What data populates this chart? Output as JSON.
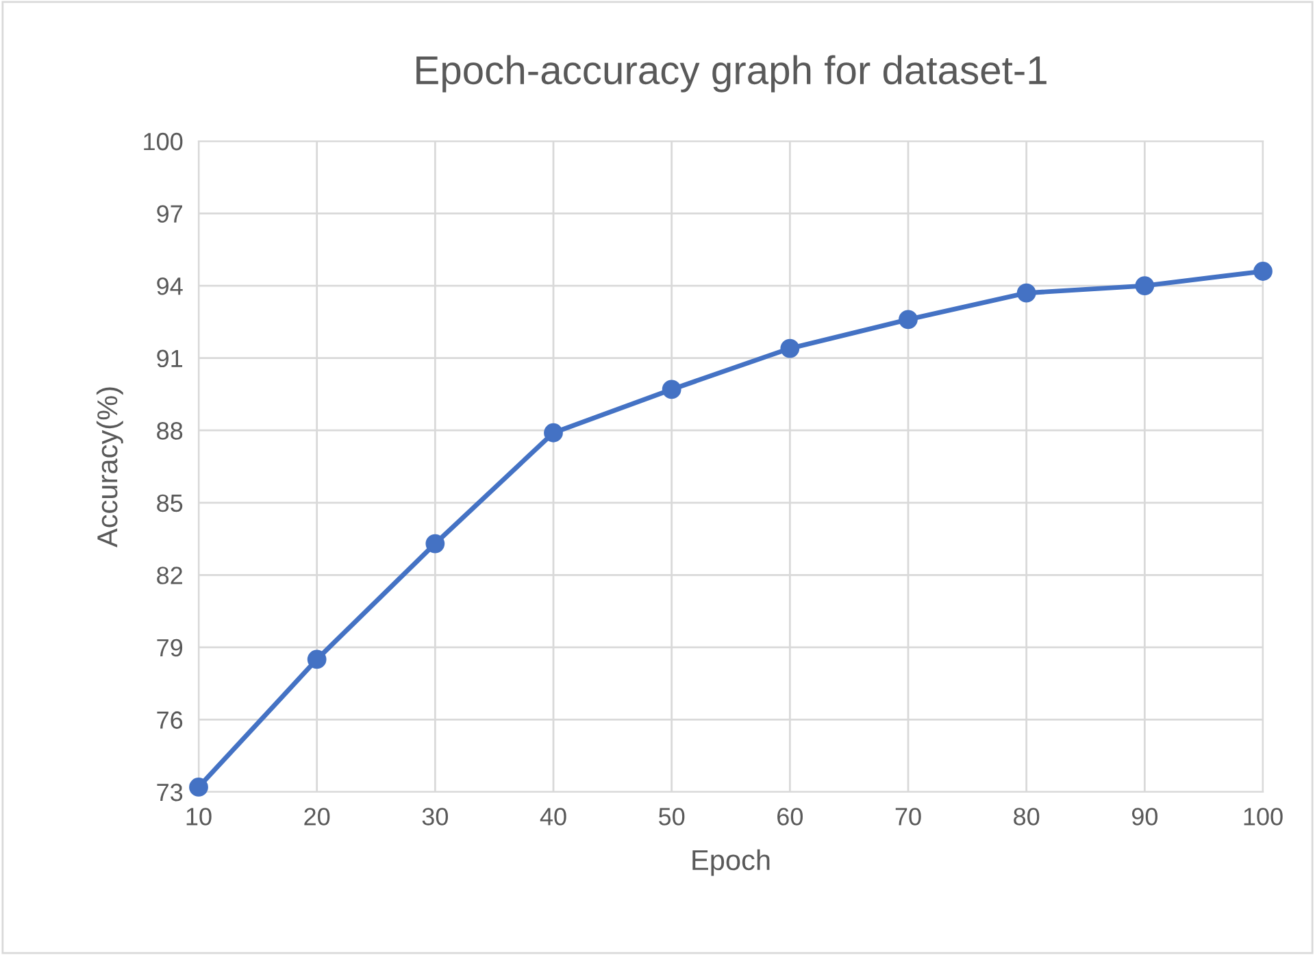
{
  "chart_data": {
    "type": "line",
    "title": "Epoch-accuracy graph for dataset-1",
    "xlabel": "Epoch",
    "ylabel": "Accuracy(%)",
    "x": [
      10,
      20,
      30,
      40,
      50,
      60,
      70,
      80,
      90,
      100
    ],
    "series": [
      {
        "color": "#4472c4",
        "values": [
          73.2,
          78.5,
          83.3,
          87.9,
          89.7,
          91.4,
          92.6,
          93.7,
          94.0,
          94.6
        ]
      }
    ],
    "xlim": [
      10,
      100
    ],
    "xticks": [
      10,
      20,
      30,
      40,
      50,
      60,
      70,
      80,
      90,
      100
    ],
    "ylim": [
      73,
      100
    ],
    "yticks": [
      73,
      76,
      79,
      82,
      85,
      88,
      91,
      94,
      97,
      100
    ],
    "grid": true,
    "marker": "circle",
    "line_style": "solid",
    "legend": false
  }
}
